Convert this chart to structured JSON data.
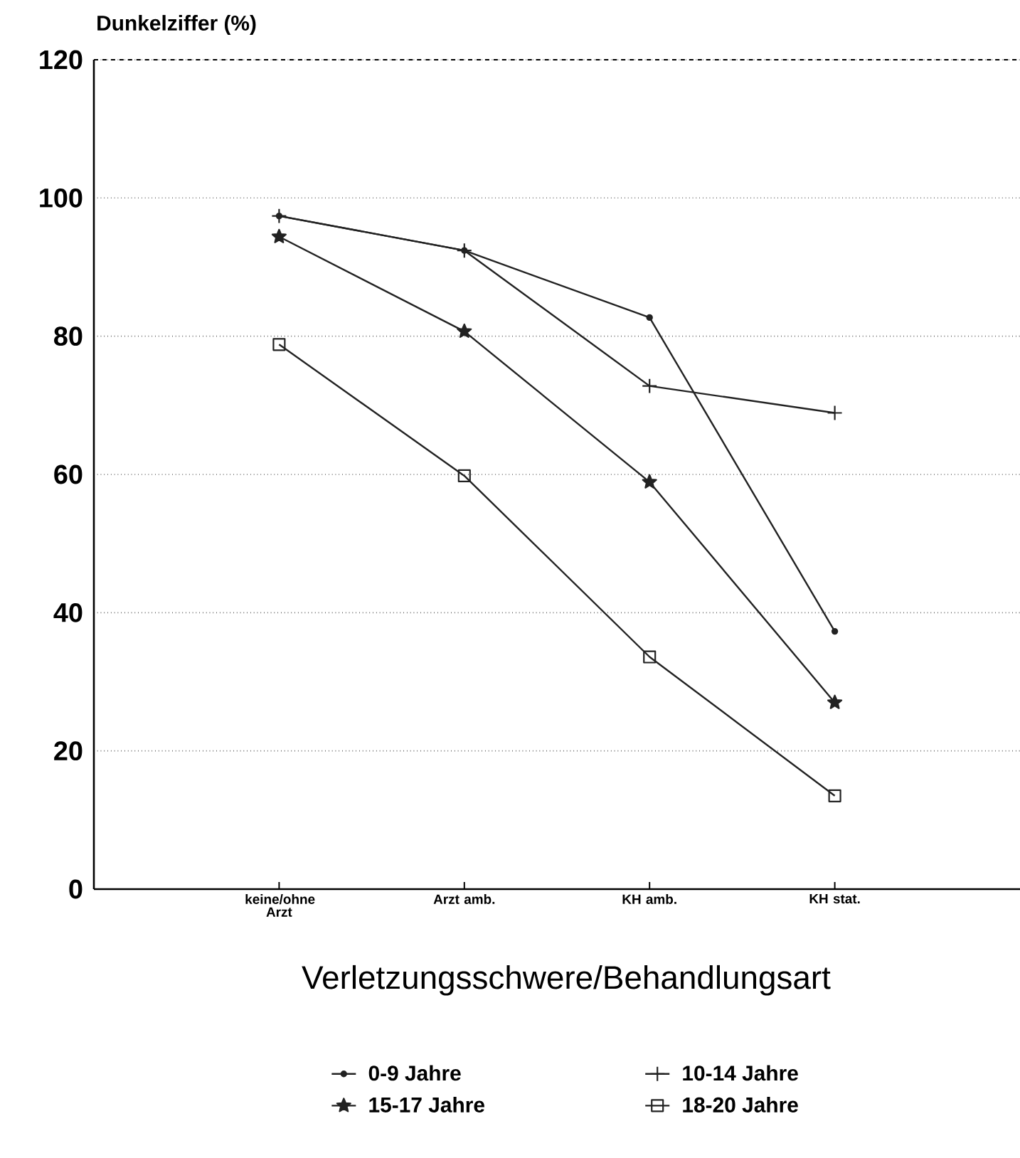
{
  "chart_data": {
    "type": "line",
    "ylabel": "Dunkelziffer (%)",
    "xlabel": "Verletzungsschwere/Behandlungsart",
    "categories": [
      "keine/ohne Arzt",
      "Arzt amb.",
      "KH amb.",
      "KH stat."
    ],
    "series": [
      {
        "name": "0-9 Jahre",
        "color": "#222222",
        "marker": "circle",
        "values": [
          97.4,
          92.4,
          82.7,
          37.3
        ]
      },
      {
        "name": "10-14 Jahre",
        "color": "#222222",
        "marker": "cross",
        "values": [
          97.4,
          92.4,
          72.8,
          68.9
        ]
      },
      {
        "name": "15-17 Jahre",
        "color": "#222222",
        "marker": "star",
        "values": [
          94.4,
          80.7,
          58.9,
          27.0
        ]
      },
      {
        "name": "18-20 Jahre",
        "color": "#222222",
        "marker": "square",
        "values": [
          78.8,
          59.8,
          33.6,
          13.5
        ]
      }
    ],
    "ylim": [
      0,
      120
    ],
    "yticks": [
      0,
      20,
      40,
      60,
      80,
      100,
      120
    ],
    "grid": "y",
    "legend": "bottom",
    "line_style": "solid"
  }
}
